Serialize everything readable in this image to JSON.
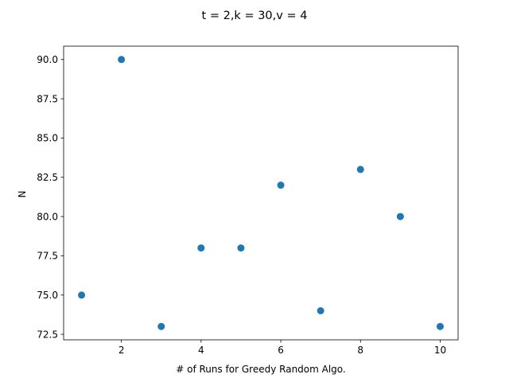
{
  "chart_data": {
    "type": "scatter",
    "title": "t = 2,k = 30,v = 4",
    "xlabel": "# of Runs for Greedy Random Algo.",
    "ylabel": "N",
    "xlim": [
      0.55,
      10.45
    ],
    "ylim": [
      72.15,
      90.85
    ],
    "xticks": [
      2,
      4,
      6,
      8,
      10
    ],
    "yticks": [
      72.5,
      75.0,
      77.5,
      80.0,
      82.5,
      85.0,
      87.5,
      90.0
    ],
    "ytick_labels": [
      "72.5",
      "75.0",
      "77.5",
      "80.0",
      "82.5",
      "85.0",
      "87.5",
      "90.0"
    ],
    "grid": false,
    "color": "#1f77b4",
    "points": [
      {
        "x": 1,
        "y": 75
      },
      {
        "x": 2,
        "y": 90
      },
      {
        "x": 3,
        "y": 73
      },
      {
        "x": 4,
        "y": 78
      },
      {
        "x": 5,
        "y": 78
      },
      {
        "x": 6,
        "y": 82
      },
      {
        "x": 7,
        "y": 74
      },
      {
        "x": 8,
        "y": 83
      },
      {
        "x": 9,
        "y": 80
      },
      {
        "x": 10,
        "y": 73
      }
    ]
  }
}
